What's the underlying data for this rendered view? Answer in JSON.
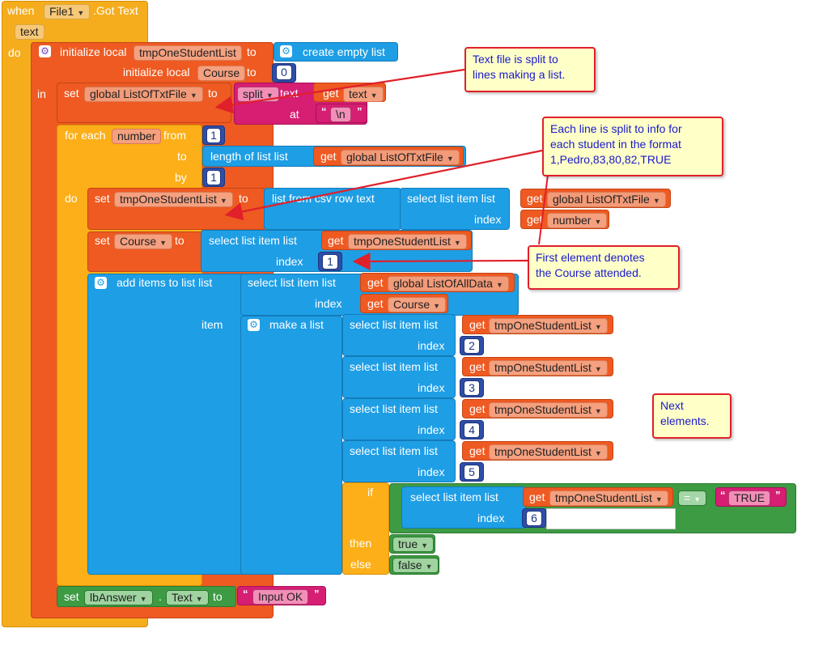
{
  "event": {
    "when": "when",
    "component": "File1",
    "event_name": ".Got Text",
    "param": "text",
    "do": "do"
  },
  "init_local": {
    "label": "initialize local",
    "name1": "tmpOneStudentList",
    "to": "to",
    "create_empty_list": "create empty list",
    "name2": "Course",
    "value2": "0",
    "in": "in"
  },
  "set_global": {
    "set": "set",
    "var": "global ListOfTxtFile",
    "to": "to",
    "split": "split",
    "text_label": "text",
    "get": "get",
    "text_var": "text",
    "at": "at",
    "sep": "\\n"
  },
  "for_each": {
    "label": "for each",
    "var": "number",
    "from": "from",
    "from_val": "1",
    "to": "to",
    "length_of_list": "length of list  list",
    "get": "get",
    "list_var": "global ListOfTxtFile",
    "by": "by",
    "by_val": "1",
    "do": "do"
  },
  "set_tmp": {
    "set": "set",
    "var": "tmpOneStudentList",
    "to": "to",
    "csv": "list from csv row  text",
    "select": "select list item  list",
    "get": "get",
    "list_var": "global ListOfTxtFile",
    "index": "index",
    "index_var": "number"
  },
  "set_course": {
    "set": "set",
    "var": "Course",
    "to": "to",
    "select": "select list item  list",
    "get": "get",
    "list_var": "tmpOneStudentList",
    "index": "index",
    "index_val": "1"
  },
  "add_items": {
    "label": "add items to list  list",
    "select": "select list item  list",
    "get": "get",
    "list_var": "global ListOfAllData",
    "index": "index",
    "course_var": "Course",
    "item": "item",
    "make_list": "make a list",
    "rows": [
      {
        "select": "select list item  list",
        "get": "get",
        "var": "tmpOneStudentList",
        "index": "index",
        "num": "2"
      },
      {
        "select": "select list item  list",
        "get": "get",
        "var": "tmpOneStudentList",
        "index": "index",
        "num": "3"
      },
      {
        "select": "select list item  list",
        "get": "get",
        "var": "tmpOneStudentList",
        "index": "index",
        "num": "4"
      },
      {
        "select": "select list item  list",
        "get": "get",
        "var": "tmpOneStudentList",
        "index": "index",
        "num": "5"
      }
    ],
    "if_label": "if",
    "if_select": "select list item  list",
    "if_get": "get",
    "if_var": "tmpOneStudentList",
    "if_index": "index",
    "if_num": "6",
    "eq": "=",
    "true_str": "TRUE",
    "then": "then",
    "then_val": "true",
    "else": "else",
    "else_val": "false"
  },
  "set_answer": {
    "set": "set",
    "component": "lbAnswer",
    "dot": ".",
    "prop": "Text",
    "to": "to",
    "value": "Input OK"
  },
  "callouts": {
    "c1_l1": "Text file is split to",
    "c1_l2": "lines making a list.",
    "c2_l1": "Each line is split to info for",
    "c2_l2": "each student in the format",
    "c2_l3": "1,Pedro,83,80,82,TRUE",
    "c3_l1": "First element denotes",
    "c3_l2": "the Course attended.",
    "c4_l1": "Next",
    "c4_l2": "elements."
  },
  "colors": {
    "event": "#f5ad1e",
    "variable": "#ee5a22",
    "control": "#fcaf18",
    "list": "#1e9ee5",
    "math": "#2f4ea7",
    "text": "#d61e73",
    "logic": "#3d9b43",
    "callout_border": "#e0202a",
    "callout_text": "#1a1acc"
  }
}
